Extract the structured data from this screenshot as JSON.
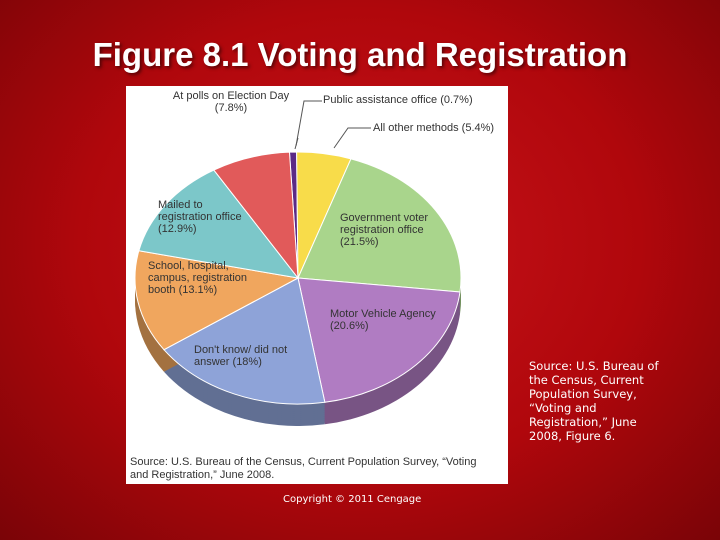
{
  "chart_data": {
    "type": "pie",
    "title": "Figure 8.1  Voting and Registration",
    "categories": [
      "Public assistance office",
      "All other methods",
      "Government voter registration office",
      "Motor Vehicle Agency",
      "Don't know/ did not answer",
      "School, hospital, campus, registration booth",
      "Mailed to registration office",
      "At polls on Election Day"
    ],
    "values": [
      0.7,
      5.4,
      21.5,
      20.6,
      18,
      13.1,
      12.9,
      7.8
    ],
    "value_labels": [
      "(0.7%)",
      "(5.4%)",
      "(21.5%)",
      "(20.6%)",
      "(18%)",
      "(13.1%)",
      "(12.9%)",
      "(7.8%)"
    ],
    "colors": [
      "#5b2a86",
      "#f8dc4a",
      "#a9d58c",
      "#b07cc2",
      "#8ea3d8",
      "#f0a65e",
      "#7cc7c9",
      "#e15a5a"
    ]
  },
  "figure_source": "Source: U.S. Bureau of the Census, Current Population Survey, “Voting and Registration,” June 2008.",
  "source_note": "Source: U.S. Bureau of the Census, Current Population Survey, “Voting and Registration,” June 2008, Figure 6.",
  "copyright": "Copyright © 2011 Cengage"
}
